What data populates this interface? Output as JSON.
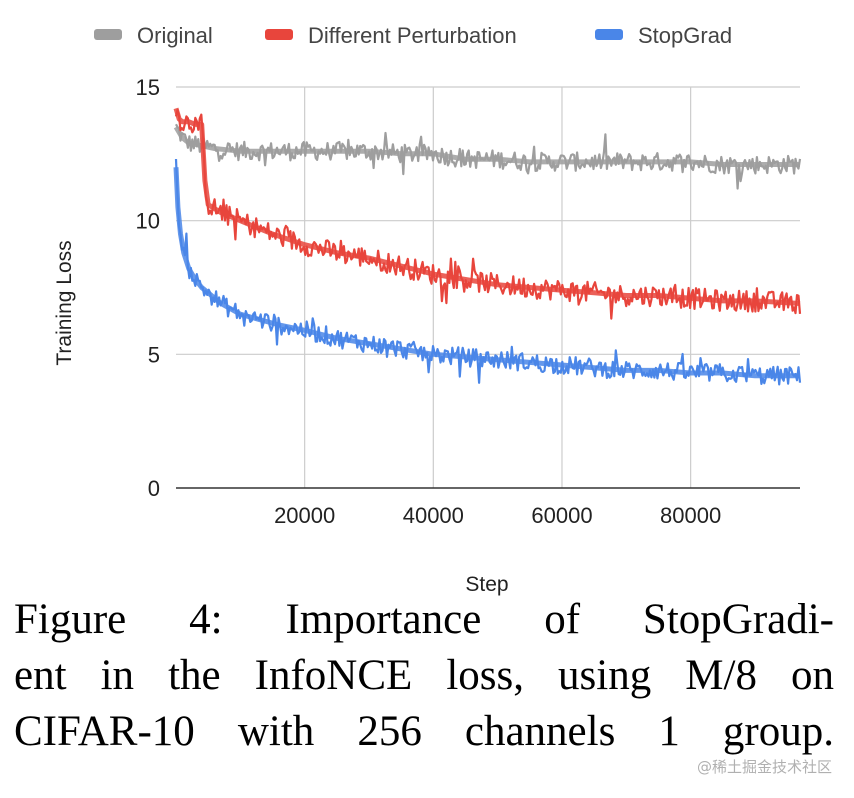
{
  "chart_data": {
    "type": "line",
    "title": "",
    "xlabel": "Step",
    "ylabel": "Training Loss",
    "xlim": [
      0,
      97000
    ],
    "ylim": [
      0,
      15
    ],
    "xticks": [
      20000,
      40000,
      60000,
      80000
    ],
    "xtick_labels": [
      "20000",
      "40000",
      "60000",
      "80000"
    ],
    "yticks": [
      0,
      5,
      10,
      15
    ],
    "ytick_labels": [
      "0",
      "5",
      "10",
      "15"
    ],
    "grid": true,
    "legend_position": "top",
    "series": [
      {
        "name": "Original",
        "color": "#9e9e9e",
        "x": [
          0,
          1000,
          2000,
          4000,
          6000,
          10000,
          15000,
          20000,
          25000,
          30000,
          35000,
          40000,
          45000,
          50000,
          55000,
          60000,
          65000,
          70000,
          75000,
          80000,
          85000,
          90000,
          97000
        ],
        "values": [
          13.5,
          13.1,
          12.9,
          12.8,
          12.7,
          12.6,
          12.6,
          12.6,
          12.6,
          12.6,
          12.5,
          12.5,
          12.3,
          12.3,
          12.2,
          12.2,
          12.2,
          12.2,
          12.2,
          12.2,
          12.1,
          12.1,
          12.1
        ]
      },
      {
        "name": "Different Perturbation",
        "color": "#e8453c",
        "x": [
          0,
          500,
          1000,
          2000,
          3000,
          4000,
          4500,
          5000,
          7000,
          10000,
          15000,
          20000,
          25000,
          30000,
          35000,
          40000,
          45000,
          50000,
          55000,
          60000,
          65000,
          70000,
          75000,
          80000,
          85000,
          90000,
          97000
        ],
        "values": [
          14.2,
          13.8,
          13.7,
          13.7,
          13.6,
          13.6,
          11.5,
          10.6,
          10.3,
          10.0,
          9.5,
          9.1,
          8.8,
          8.6,
          8.3,
          8.0,
          7.8,
          7.6,
          7.5,
          7.4,
          7.3,
          7.2,
          7.2,
          7.1,
          7.0,
          7.0,
          6.9
        ]
      },
      {
        "name": "StopGrad",
        "color": "#4a86e8",
        "x": [
          0,
          300,
          700,
          1200,
          2000,
          3000,
          4000,
          5000,
          7000,
          10000,
          13000,
          16000,
          20000,
          25000,
          30000,
          35000,
          40000,
          45000,
          50000,
          55000,
          60000,
          65000,
          70000,
          75000,
          80000,
          85000,
          90000,
          97000
        ],
        "values": [
          12.0,
          10.5,
          9.5,
          8.8,
          8.2,
          7.8,
          7.5,
          7.3,
          6.9,
          6.5,
          6.3,
          6.1,
          5.9,
          5.6,
          5.4,
          5.2,
          5.0,
          4.9,
          4.8,
          4.7,
          4.6,
          4.5,
          4.4,
          4.4,
          4.3,
          4.3,
          4.2,
          4.2
        ]
      }
    ]
  },
  "caption": {
    "lines": [
      "Figure 4: Importance of StopGradi-",
      "ent in the InfoNCE loss, using M/8 on",
      "CIFAR-10 with 256 channels 1 group."
    ]
  },
  "watermark": "@稀土掘金技术社区"
}
